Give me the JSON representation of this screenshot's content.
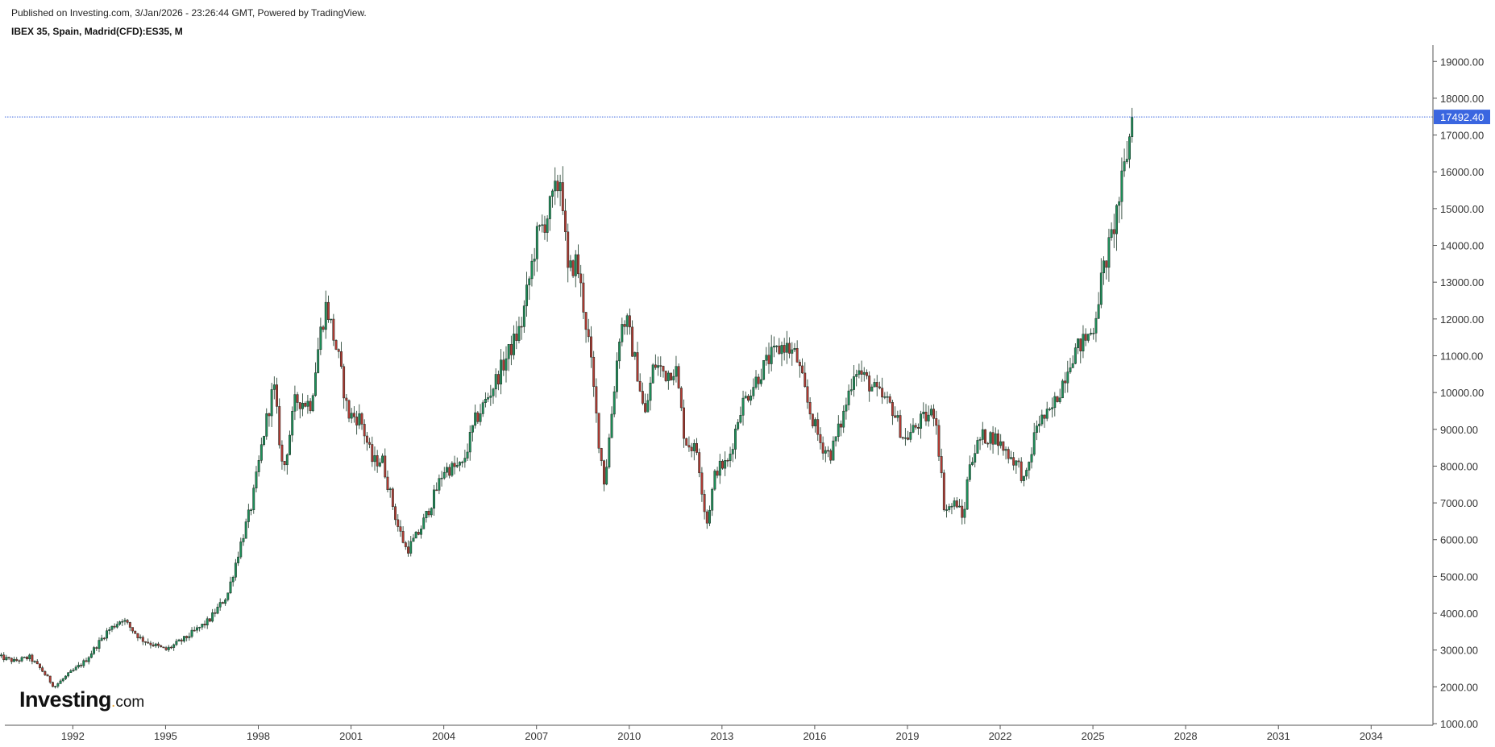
{
  "header": {
    "published": "Published on Investing.com, 3/Jan/2026 - 23:26:44 GMT, Powered by TradingView.",
    "symbol": "IBEX 35, Spain, Madrid(CFD):ES35, M"
  },
  "logo": {
    "main": "Investing",
    "dot": ".",
    "tld": "com"
  },
  "colors": {
    "up": "#1e8f5a",
    "down": "#b33a33",
    "price_line": "#3a66e0",
    "price_badge": "#3a66e0"
  },
  "chart_data": {
    "type": "candlestick",
    "title": "IBEX 35, Spain, Madrid(CFD):ES35, M",
    "interval": "monthly",
    "y_axis_side": "right",
    "ylim": [
      1000,
      19400
    ],
    "y_ticks": [
      "1000.00",
      "2000.00",
      "3000.00",
      "4000.00",
      "5000.00",
      "6000.00",
      "7000.00",
      "8000.00",
      "9000.00",
      "10000.00",
      "11000.00",
      "12000.00",
      "13000.00",
      "14000.00",
      "15000.00",
      "16000.00",
      "17000.00",
      "18000.00",
      "19000.00"
    ],
    "x_range_years": [
      1989.8,
      2036.0
    ],
    "x_ticks": [
      "1992",
      "1995",
      "1998",
      "2001",
      "2004",
      "2007",
      "2010",
      "2013",
      "2016",
      "2019",
      "2022",
      "2025",
      "2028",
      "2031",
      "2034"
    ],
    "last_price": 17492.4,
    "last_price_label": "17492.40",
    "keypoints": [
      {
        "t": 1989.6,
        "v": 2820
      },
      {
        "t": 1990.1,
        "v": 2700
      },
      {
        "t": 1990.6,
        "v": 2800
      },
      {
        "t": 1991.0,
        "v": 2450
      },
      {
        "t": 1991.4,
        "v": 2000
      },
      {
        "t": 1991.8,
        "v": 2300
      },
      {
        "t": 1992.4,
        "v": 2700
      },
      {
        "t": 1993.1,
        "v": 3500
      },
      {
        "t": 1993.6,
        "v": 3850
      },
      {
        "t": 1994.2,
        "v": 3300
      },
      {
        "t": 1995.0,
        "v": 3000
      },
      {
        "t": 1995.6,
        "v": 3300
      },
      {
        "t": 1996.4,
        "v": 3800
      },
      {
        "t": 1997.0,
        "v": 4500
      },
      {
        "t": 1997.4,
        "v": 5800
      },
      {
        "t": 1997.8,
        "v": 7000
      },
      {
        "t": 1998.2,
        "v": 9000
      },
      {
        "t": 1998.5,
        "v": 10200
      },
      {
        "t": 1998.8,
        "v": 7800
      },
      {
        "t": 1999.2,
        "v": 9800
      },
      {
        "t": 1999.7,
        "v": 9700
      },
      {
        "t": 2000.0,
        "v": 11600
      },
      {
        "t": 2000.2,
        "v": 12400
      },
      {
        "t": 2000.6,
        "v": 10900
      },
      {
        "t": 2000.9,
        "v": 9400
      },
      {
        "t": 2001.3,
        "v": 9300
      },
      {
        "t": 2001.7,
        "v": 8100
      },
      {
        "t": 2002.0,
        "v": 8200
      },
      {
        "t": 2002.5,
        "v": 6400
      },
      {
        "t": 2002.8,
        "v": 5700
      },
      {
        "t": 2003.2,
        "v": 6200
      },
      {
        "t": 2003.6,
        "v": 7000
      },
      {
        "t": 2004.0,
        "v": 7900
      },
      {
        "t": 2004.6,
        "v": 8000
      },
      {
        "t": 2005.0,
        "v": 9200
      },
      {
        "t": 2005.5,
        "v": 10000
      },
      {
        "t": 2006.0,
        "v": 10900
      },
      {
        "t": 2006.5,
        "v": 11800
      },
      {
        "t": 2007.0,
        "v": 14200
      },
      {
        "t": 2007.3,
        "v": 14700
      },
      {
        "t": 2007.8,
        "v": 15900
      },
      {
        "t": 2008.0,
        "v": 13200
      },
      {
        "t": 2008.3,
        "v": 13600
      },
      {
        "t": 2008.7,
        "v": 11300
      },
      {
        "t": 2009.0,
        "v": 8800
      },
      {
        "t": 2009.2,
        "v": 7500
      },
      {
        "t": 2009.7,
        "v": 11700
      },
      {
        "t": 2009.9,
        "v": 12000
      },
      {
        "t": 2010.3,
        "v": 10400
      },
      {
        "t": 2010.5,
        "v": 9300
      },
      {
        "t": 2010.8,
        "v": 10800
      },
      {
        "t": 2011.2,
        "v": 10500
      },
      {
        "t": 2011.5,
        "v": 10700
      },
      {
        "t": 2011.8,
        "v": 8700
      },
      {
        "t": 2012.2,
        "v": 8400
      },
      {
        "t": 2012.5,
        "v": 6400
      },
      {
        "t": 2012.8,
        "v": 7900
      },
      {
        "t": 2013.2,
        "v": 8100
      },
      {
        "t": 2013.6,
        "v": 9600
      },
      {
        "t": 2014.0,
        "v": 10200
      },
      {
        "t": 2014.5,
        "v": 10900
      },
      {
        "t": 2015.0,
        "v": 11300
      },
      {
        "t": 2015.4,
        "v": 11000
      },
      {
        "t": 2015.8,
        "v": 9600
      },
      {
        "t": 2016.2,
        "v": 8600
      },
      {
        "t": 2016.5,
        "v": 8300
      },
      {
        "t": 2016.9,
        "v": 9300
      },
      {
        "t": 2017.3,
        "v": 10700
      },
      {
        "t": 2017.7,
        "v": 10300
      },
      {
        "t": 2018.0,
        "v": 10000
      },
      {
        "t": 2018.5,
        "v": 9600
      },
      {
        "t": 2018.9,
        "v": 8700
      },
      {
        "t": 2019.4,
        "v": 9200
      },
      {
        "t": 2019.9,
        "v": 9500
      },
      {
        "t": 2020.2,
        "v": 6800
      },
      {
        "t": 2020.6,
        "v": 7000
      },
      {
        "t": 2020.8,
        "v": 6500
      },
      {
        "t": 2021.0,
        "v": 8100
      },
      {
        "t": 2021.4,
        "v": 8800
      },
      {
        "t": 2021.8,
        "v": 8800
      },
      {
        "t": 2022.2,
        "v": 8400
      },
      {
        "t": 2022.6,
        "v": 8000
      },
      {
        "t": 2022.8,
        "v": 7500
      },
      {
        "t": 2023.2,
        "v": 9200
      },
      {
        "t": 2023.6,
        "v": 9400
      },
      {
        "t": 2023.9,
        "v": 10000
      },
      {
        "t": 2024.3,
        "v": 11000
      },
      {
        "t": 2024.7,
        "v": 11400
      },
      {
        "t": 2025.0,
        "v": 11700
      },
      {
        "t": 2025.3,
        "v": 13200
      },
      {
        "t": 2025.6,
        "v": 14200
      },
      {
        "t": 2025.9,
        "v": 15500
      },
      {
        "t": 2026.2,
        "v": 17000
      },
      {
        "t": 2026.3,
        "v": 17492.4
      }
    ]
  }
}
